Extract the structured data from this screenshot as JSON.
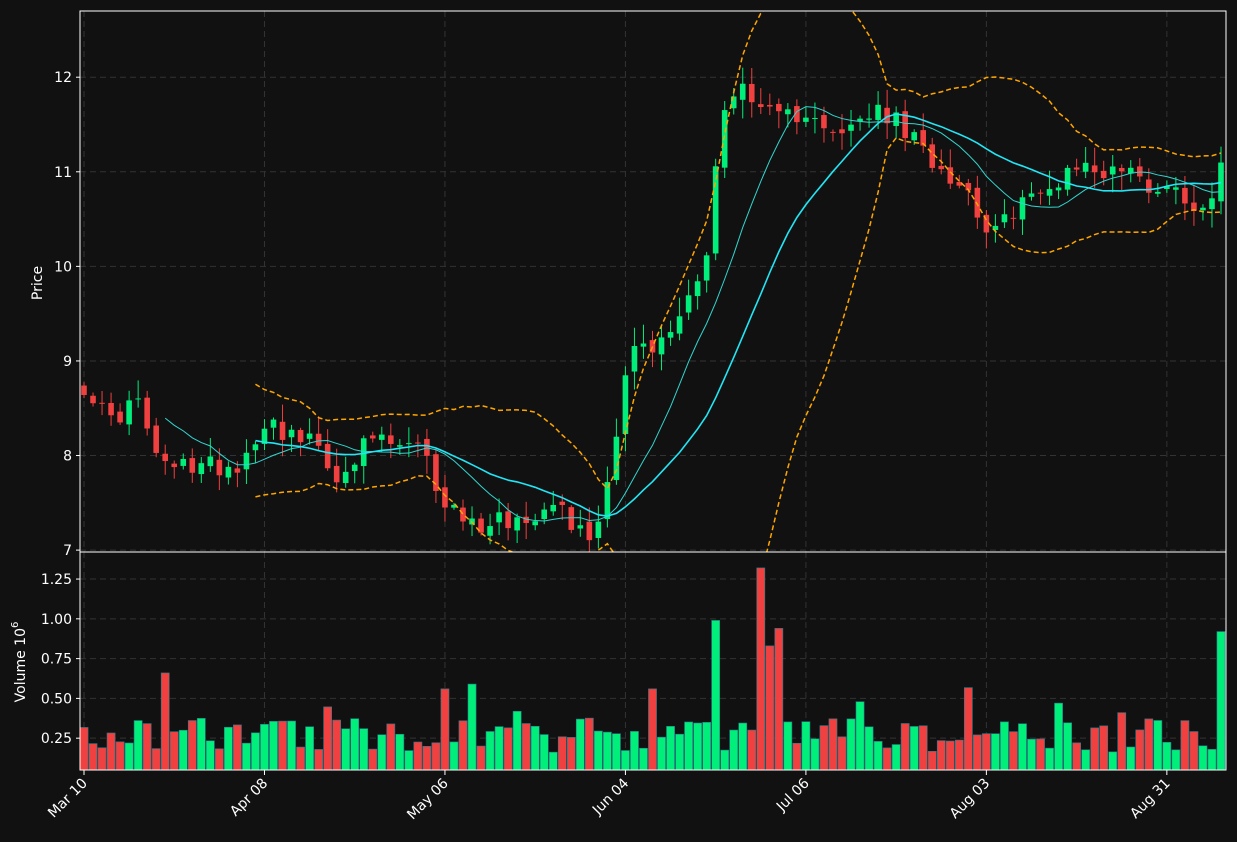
{
  "colors": {
    "background": "#111111",
    "grid": "#333333",
    "axis": "#ffffff",
    "up": "#00ee7a",
    "down": "#f04040",
    "ma_short": "#31d6cf",
    "ma_long": "#22e6f5",
    "bollinger": "#ffa500"
  },
  "chart_data": [
    {
      "type": "candlestick",
      "ylabel": "Price",
      "ylim": [
        6.98,
        12.7
      ],
      "yticks": [
        "7",
        "8",
        "9",
        "10",
        "11",
        "12"
      ],
      "xticks": [
        "Mar 10",
        "Apr 08",
        "May 06",
        "Jun 04",
        "Jul 06",
        "Aug 03",
        "Aug 31"
      ],
      "overlays": [
        "moving average (short)",
        "moving average (long)",
        "bollinger upper",
        "bollinger lower"
      ]
    },
    {
      "type": "bar",
      "ylabel": "Volume  10^6",
      "ylabel_main": "Volume  10",
      "ylabel_exp": "6",
      "ylim": [
        0.05,
        1.42
      ],
      "yticks": [
        "0.25",
        "0.50",
        "0.75",
        "1.00",
        "1.25"
      ]
    }
  ]
}
